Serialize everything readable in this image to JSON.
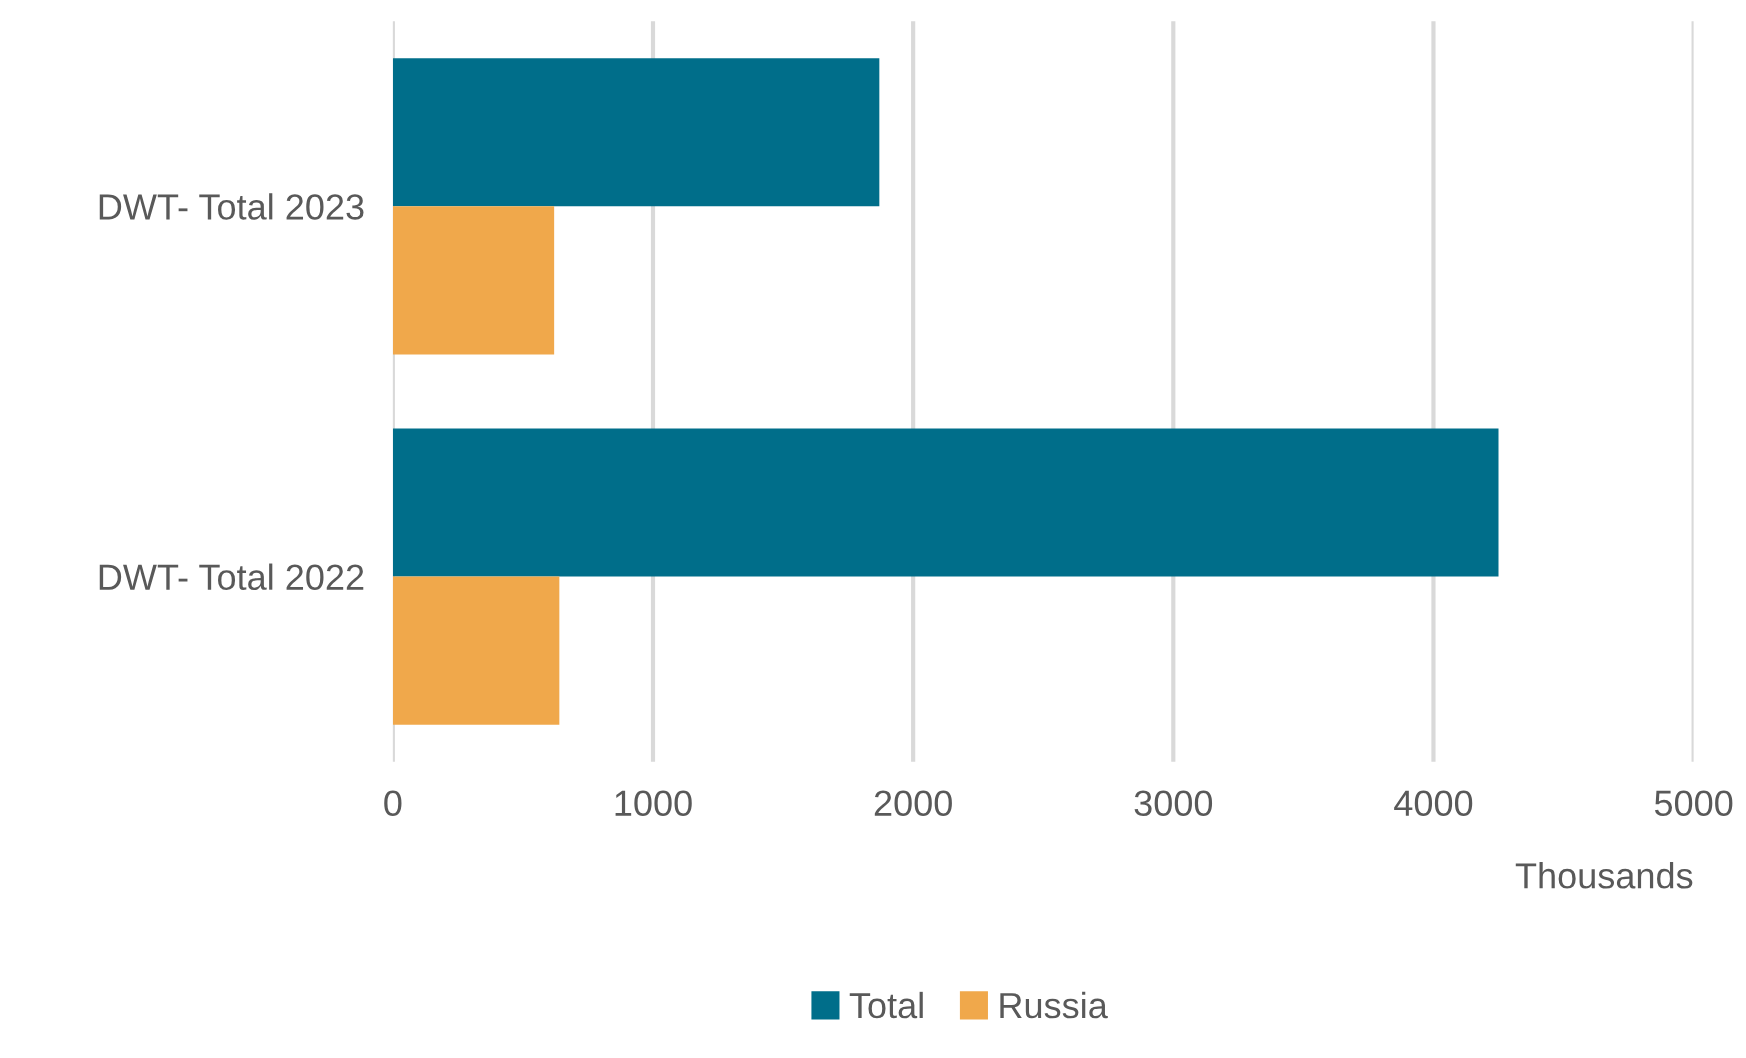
{
  "chart_data": {
    "type": "bar",
    "orientation": "horizontal",
    "categories": [
      "DWT- Total 2023",
      "DWT- Total 2022"
    ],
    "series": [
      {
        "name": "Total",
        "color": "#006e8a",
        "values": [
          1870,
          4250
        ]
      },
      {
        "name": "Russia",
        "color": "#f0a84b",
        "values": [
          620,
          640
        ]
      }
    ],
    "xlim": [
      0,
      5000
    ],
    "xticks": [
      0,
      1000,
      2000,
      3000,
      4000,
      5000
    ],
    "xlabel": "Thousands",
    "grid": "x",
    "legend": "bottom"
  }
}
